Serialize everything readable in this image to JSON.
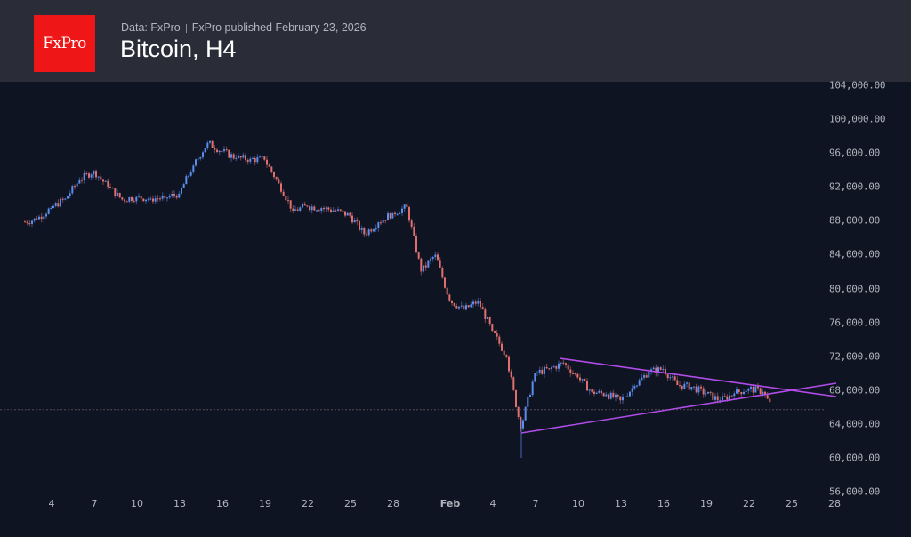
{
  "header": {
    "logo_text": "FxPro",
    "data_source": "Data: FxPro",
    "published": "FxPro published February 23, 2026",
    "title": "Bitcoin, H4"
  },
  "colors": {
    "background": "#0e1421",
    "header_bg": "#2a2d38",
    "logo_bg": "#ee1616",
    "up_candle": "#5b8def",
    "down_candle": "#e0706f",
    "trendline": "#b14ce8",
    "last_price_line": "#5a4a52"
  },
  "chart_data": {
    "type": "candlestick",
    "title": "Bitcoin, H4",
    "timeframe": "H4",
    "xlabel": "",
    "ylabel": "",
    "ylim": [
      56000,
      104000
    ],
    "y_ticks": [
      "104,000.00",
      "100,000.00",
      "96,000.00",
      "92,000.00",
      "88,000.00",
      "84,000.00",
      "80,000.00",
      "76,000.00",
      "72,000.00",
      "68,000.00",
      "64,000.00",
      "60,000.00",
      "56,000.00"
    ],
    "x_ticks": [
      "4",
      "7",
      "10",
      "13",
      "16",
      "19",
      "22",
      "25",
      "28",
      "Feb",
      "4",
      "7",
      "10",
      "13",
      "16",
      "19",
      "22",
      "25",
      "28"
    ],
    "grid": false,
    "daily_closes_approx": {
      "dates": [
        "Jan 2",
        "Jan 3",
        "Jan 4",
        "Jan 5",
        "Jan 6",
        "Jan 7",
        "Jan 8",
        "Jan 9",
        "Jan 10",
        "Jan 11",
        "Jan 12",
        "Jan 13",
        "Jan 14",
        "Jan 15",
        "Jan 16",
        "Jan 17",
        "Jan 18",
        "Jan 19",
        "Jan 20",
        "Jan 21",
        "Jan 22",
        "Jan 23",
        "Jan 24",
        "Jan 25",
        "Jan 26",
        "Jan 27",
        "Jan 28",
        "Jan 29",
        "Jan 30",
        "Jan 31",
        "Feb 1",
        "Feb 2",
        "Feb 3",
        "Feb 4",
        "Feb 5",
        "Feb 6",
        "Feb 7",
        "Feb 8",
        "Feb 9",
        "Feb 10",
        "Feb 11",
        "Feb 12",
        "Feb 13",
        "Feb 14",
        "Feb 15",
        "Feb 16",
        "Feb 17",
        "Feb 18",
        "Feb 19",
        "Feb 20",
        "Feb 21",
        "Feb 22",
        "Feb 23"
      ],
      "values": [
        88200,
        89500,
        90600,
        92800,
        93900,
        92000,
        90500,
        90800,
        90600,
        90700,
        91200,
        94500,
        97200,
        96200,
        95400,
        95300,
        95200,
        92400,
        89200,
        89700,
        89500,
        89200,
        88600,
        86400,
        87800,
        88900,
        89600,
        82000,
        84000,
        78600,
        77500,
        78500,
        75000,
        72000,
        63500,
        70000,
        70500,
        71200,
        69500,
        67800,
        67500,
        66800,
        68500,
        70200,
        70500,
        68600,
        68400,
        67600,
        66800,
        67600,
        68200,
        67800,
        64900
      ]
    },
    "series": [
      {
        "name": "Last price",
        "value": 65700,
        "style": "dotted horizontal line"
      }
    ],
    "annotations": [
      {
        "type": "trendline",
        "name": "triangle-upper",
        "from": {
          "date": "Feb 8",
          "price": 71600
        },
        "to": {
          "date": "Feb 28+",
          "price": 67000
        }
      },
      {
        "type": "trendline",
        "name": "triangle-lower",
        "from": {
          "date": "Feb 5",
          "price": 62700
        },
        "to": {
          "date": "Feb 28+",
          "price": 68500
        }
      }
    ],
    "notable_points": {
      "high": {
        "date": "Jan 14",
        "price": 97800
      },
      "low": {
        "date": "Feb 6",
        "price": 60000
      }
    }
  }
}
